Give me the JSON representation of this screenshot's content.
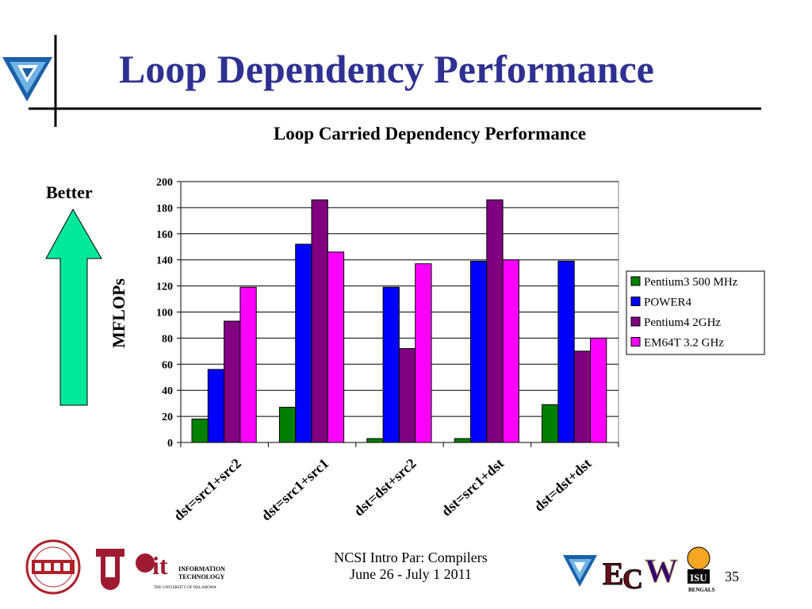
{
  "slide": {
    "title": "Loop Dependency Performance",
    "better_label": "Better",
    "footer_line1": "NCSI Intro Par: Compilers",
    "footer_line2": "June 26 - July 1 2011",
    "page_number": "35"
  },
  "colors": {
    "title": "#2e3192",
    "arrow_fill": "#00e89a",
    "rule": "#d0d0d0"
  },
  "logos": {
    "left": [
      "OSCER supercomputing logo",
      "OU logo",
      "OU Information Technology logo"
    ],
    "right": [
      "OU triangle logo",
      "ECU logo",
      "Washington W logo",
      "ISU Bengals logo"
    ],
    "it_text": [
      "INFORMATION",
      "TECHNOLOGY",
      "THE UNIVERSITY OF OKLAHOMA"
    ]
  },
  "chart_data": {
    "type": "bar",
    "title": "Loop Carried Dependency Performance",
    "ylabel": "MFLOPs",
    "xlabel": "",
    "ylim": [
      0,
      200
    ],
    "yticks": [
      0,
      20,
      40,
      60,
      80,
      100,
      120,
      140,
      160,
      180,
      200
    ],
    "grid": true,
    "legend_position": "right",
    "categories": [
      "dst=src1+src2",
      "dst=src1+src1",
      "dst=dst+src2",
      "dst=src1+dst",
      "dst=dst+dst"
    ],
    "series": [
      {
        "name": "Pentium3 500 MHz",
        "color": "#008000",
        "values": [
          18,
          27,
          3,
          3,
          29
        ]
      },
      {
        "name": "POWER4",
        "color": "#0000ff",
        "values": [
          56,
          152,
          119,
          139,
          139
        ]
      },
      {
        "name": "Pentium4 2GHz",
        "color": "#800080",
        "values": [
          93,
          186,
          72,
          186,
          70
        ]
      },
      {
        "name": "EM64T 3.2 GHz",
        "color": "#ff00ff",
        "values": [
          119,
          146,
          137,
          140,
          80
        ]
      }
    ]
  }
}
